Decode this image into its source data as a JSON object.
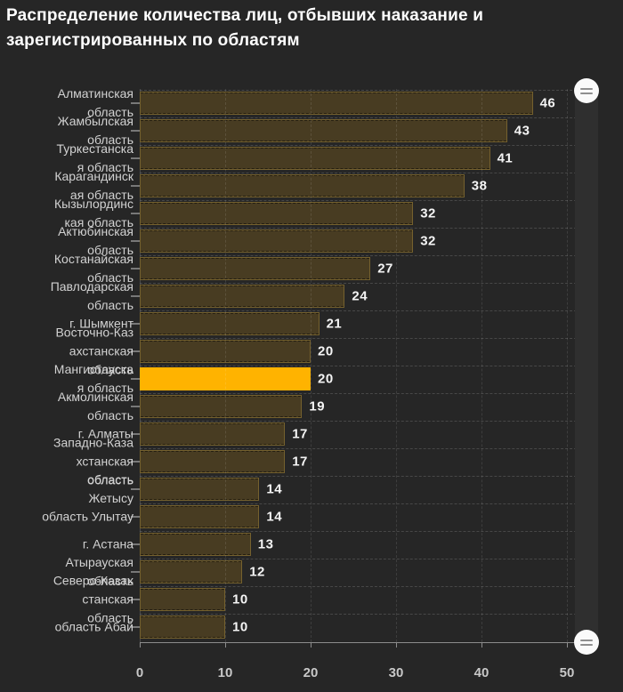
{
  "title": {
    "display": "Распределение количества лиц, отбывших наказание и\nзарегистрированных по областям"
  },
  "chart_data": {
    "type": "bar",
    "orientation": "horizontal",
    "title": "Распределение количества лиц, отбывших наказание и зарегистрированных по областям",
    "xlabel": "",
    "ylabel": "",
    "xlim": [
      0,
      50
    ],
    "x_ticks": [
      0,
      10,
      20,
      30,
      40,
      50
    ],
    "x_tick_labels": [
      "0",
      "10",
      "20",
      "30",
      "40",
      "50"
    ],
    "grid": "dashed",
    "legend": "none",
    "categories": [
      "Алматинская область",
      "Жамбылская область",
      "Туркестанская область",
      "Карагандинская область",
      "Кызылординская область",
      "Актюбинская область",
      "Костанайская область",
      "Павлодарская область",
      "г. Шымкент",
      "Восточно-Казахстанская область",
      "Мангистауская область",
      "Акмолинская область",
      "г. Алматы",
      "Западно-Казахстанская область",
      "область Жетысу",
      "область Улытау",
      "г. Астана",
      "Атырауская область",
      "Северо-Казахстанская область",
      "область Абай"
    ],
    "display_labels": [
      [
        "Алматинская",
        "область"
      ],
      [
        "Жамбылская",
        "область"
      ],
      [
        "Туркестанска",
        "я область"
      ],
      [
        "Карагандинск",
        "ая область"
      ],
      [
        "Кызылординс",
        "кая область"
      ],
      [
        "Актюбинская",
        "область"
      ],
      [
        "Костанайская",
        "область"
      ],
      [
        "Павлодарская",
        "область"
      ],
      [
        "г. Шымкент"
      ],
      [
        "Восточно-Каз",
        "ахстанская",
        "область"
      ],
      [
        "Мангистауска",
        "я область"
      ],
      [
        "Акмолинская",
        "область"
      ],
      [
        "г. Алматы"
      ],
      [
        "Западно-Каза",
        "хстанская",
        "область"
      ],
      [
        "область",
        "Жетысу"
      ],
      [
        "область Улытау"
      ],
      [
        "г. Астана"
      ],
      [
        "Атырауская",
        "область"
      ],
      [
        "Северо-Казах",
        "станская",
        "область"
      ],
      [
        "область Абай"
      ]
    ],
    "values": [
      46,
      43,
      41,
      38,
      32,
      32,
      27,
      24,
      21,
      20,
      20,
      19,
      17,
      17,
      14,
      14,
      13,
      12,
      10,
      10
    ],
    "highlighted_index": 10,
    "highlighted_category": "Мангистауская область"
  },
  "scrollbar": {
    "position": "right",
    "orientation": "vertical",
    "handle_count": 2
  },
  "colors": {
    "background": "#262626",
    "bar_fill": "#483C22",
    "bar_border": "#75612E",
    "highlight": "#FFB300",
    "title_text": "#FFFFFF",
    "label_text": "#D2D2D2",
    "value_text": "#F5F5F5",
    "axis_text": "#C8C8C8",
    "axis_line": "#8C8C8C",
    "scrollbar_track": "#2F2F2F",
    "scrollbar_handle": "#FAFAFA"
  }
}
